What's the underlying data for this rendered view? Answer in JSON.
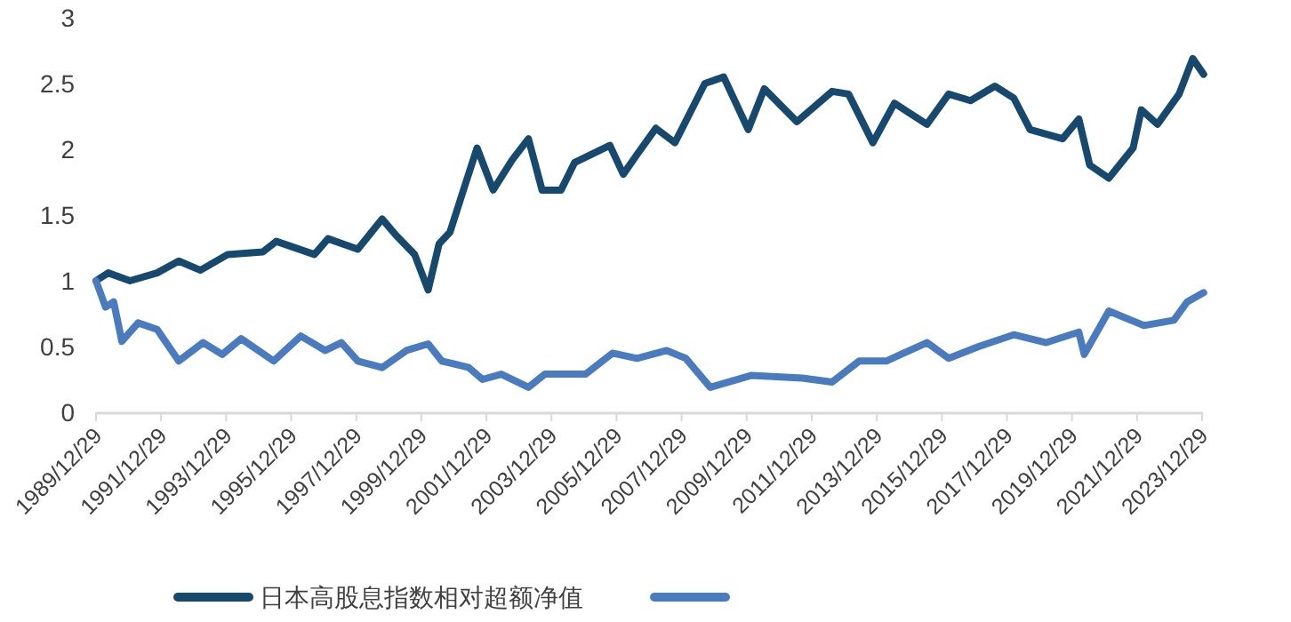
{
  "chart_data": {
    "type": "line",
    "ylim": [
      0,
      3
    ],
    "yticks": [
      0,
      0.5,
      1,
      1.5,
      2,
      2.5,
      3
    ],
    "xlim": [
      "1989-12-29",
      "2024-01-10"
    ],
    "xticks": [
      {
        "value": "1989-12-29",
        "label": "1989/12/29"
      },
      {
        "value": "1991-12-29",
        "label": "1991/12/29"
      },
      {
        "value": "1993-12-29",
        "label": "1993/12/29"
      },
      {
        "value": "1995-12-29",
        "label": "1995/12/29"
      },
      {
        "value": "1997-12-29",
        "label": "1997/12/29"
      },
      {
        "value": "1999-12-29",
        "label": "1999/12/29"
      },
      {
        "value": "2001-12-29",
        "label": "2001/12/29"
      },
      {
        "value": "2003-12-29",
        "label": "2003/12/29"
      },
      {
        "value": "2005-12-29",
        "label": "2005/12/29"
      },
      {
        "value": "2007-12-29",
        "label": "2007/12/29"
      },
      {
        "value": "2009-12-29",
        "label": "2009/12/29"
      },
      {
        "value": "2011-12-29",
        "label": "2011/12/29"
      },
      {
        "value": "2013-12-29",
        "label": "2013/12/29"
      },
      {
        "value": "2015-12-29",
        "label": "2015/12/29"
      },
      {
        "value": "2017-12-29",
        "label": "2017/12/29"
      },
      {
        "value": "2019-12-29",
        "label": "2019/12/29"
      },
      {
        "value": "2021-12-29",
        "label": "2021/12/29"
      },
      {
        "value": "2023-12-29",
        "label": "2023/12/29"
      }
    ],
    "grid": false,
    "legend": "bottom",
    "marker": "none",
    "line_style": "solid",
    "series": [
      {
        "name": "日本高股息指数相对超额净值",
        "color": "#17496e",
        "x": [
          "1989-12-29",
          "1990-05",
          "1991-01",
          "1991-11",
          "1992-07",
          "1993-03",
          "1994-01",
          "1995-02",
          "1995-07",
          "1996-09",
          "1997-02",
          "1998-01",
          "1998-10",
          "1999-03",
          "1999-10",
          "2000-03",
          "2000-07",
          "2000-11",
          "2001-04",
          "2001-09",
          "2002-03",
          "2002-10",
          "2003-04",
          "2003-09",
          "2004-04",
          "2004-09",
          "2005-10",
          "2006-03",
          "2006-08",
          "2007-03",
          "2007-10",
          "2008-09",
          "2009-04",
          "2010-01",
          "2010-07",
          "2011-07",
          "2012-08",
          "2013-02",
          "2013-11",
          "2014-07",
          "2015-07",
          "2016-03",
          "2016-11",
          "2017-08",
          "2018-03",
          "2018-09",
          "2019-09",
          "2020-03",
          "2020-07",
          "2021-02",
          "2021-11",
          "2022-02",
          "2022-08",
          "2023-04",
          "2023-09",
          "2024-01"
        ],
        "values": [
          1.0,
          1.06,
          1.0,
          1.06,
          1.15,
          1.08,
          1.2,
          1.22,
          1.3,
          1.2,
          1.32,
          1.24,
          1.47,
          1.35,
          1.2,
          0.93,
          1.28,
          1.37,
          1.69,
          2.01,
          1.69,
          1.92,
          2.08,
          1.69,
          1.69,
          1.9,
          2.03,
          1.81,
          1.96,
          2.16,
          2.05,
          2.5,
          2.55,
          2.15,
          2.46,
          2.21,
          2.44,
          2.42,
          2.05,
          2.35,
          2.19,
          2.42,
          2.37,
          2.48,
          2.39,
          2.15,
          2.08,
          2.23,
          1.88,
          1.78,
          2.01,
          2.3,
          2.19,
          2.42,
          2.69,
          2.57
        ]
      },
      {
        "color": "#4a7bbf",
        "x": [
          "1989-12-29",
          "1990-04",
          "1990-07",
          "1990-10",
          "1991-04",
          "1991-11",
          "1992-07",
          "1993-04",
          "1993-11",
          "1994-06",
          "1995-06",
          "1996-04",
          "1997-01",
          "1997-07",
          "1998-01",
          "1998-10",
          "1999-07",
          "2000-03",
          "2000-08",
          "2001-06",
          "2001-11",
          "2002-06",
          "2003-04",
          "2003-10",
          "2005-01",
          "2005-11",
          "2006-08",
          "2007-07",
          "2008-02",
          "2008-11",
          "2010-02",
          "2011-09",
          "2012-08",
          "2013-06",
          "2014-04",
          "2015-07",
          "2016-03",
          "2017-02",
          "2018-03",
          "2019-03",
          "2020-03",
          "2020-05",
          "2021-02",
          "2022-03",
          "2023-02",
          "2023-07",
          "2024-01"
        ],
        "values": [
          1.0,
          0.8,
          0.84,
          0.54,
          0.68,
          0.63,
          0.39,
          0.53,
          0.44,
          0.56,
          0.39,
          0.58,
          0.47,
          0.53,
          0.39,
          0.34,
          0.47,
          0.52,
          0.39,
          0.34,
          0.25,
          0.29,
          0.19,
          0.29,
          0.29,
          0.45,
          0.41,
          0.47,
          0.41,
          0.19,
          0.28,
          0.26,
          0.23,
          0.39,
          0.39,
          0.53,
          0.41,
          0.5,
          0.59,
          0.53,
          0.61,
          0.44,
          0.77,
          0.66,
          0.7,
          0.84,
          0.91
        ]
      }
    ]
  }
}
